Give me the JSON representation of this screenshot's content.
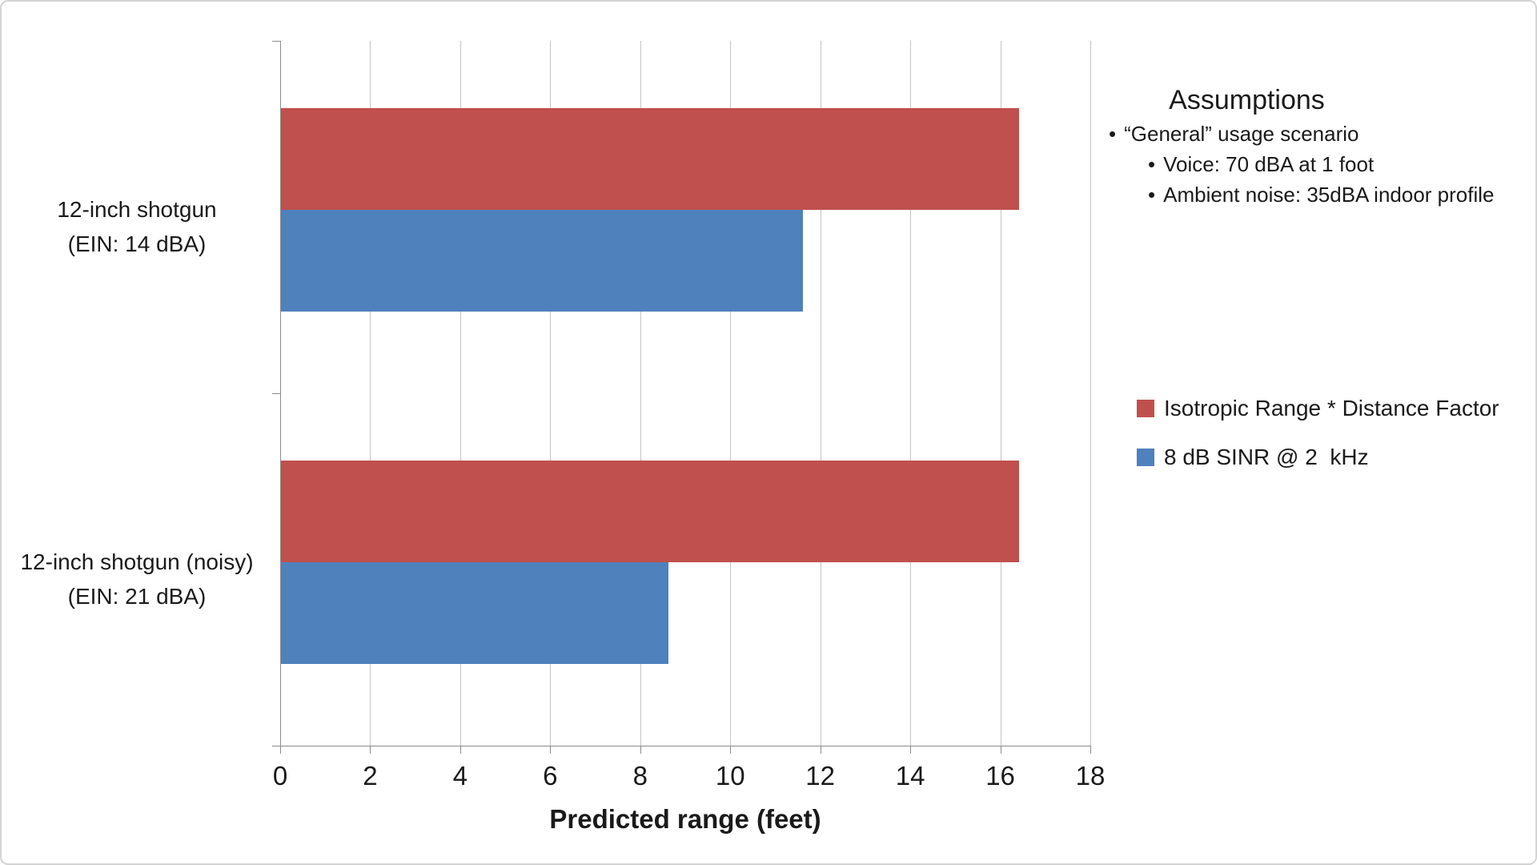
{
  "chart_data": {
    "type": "bar",
    "orientation": "horizontal",
    "xlabel": "Predicted range (feet)",
    "xlim": [
      0,
      18
    ],
    "xticks": [
      0,
      2,
      4,
      6,
      8,
      10,
      12,
      14,
      16,
      18
    ],
    "grid": true,
    "legend_position": "right",
    "categories": [
      {
        "line1": "12-inch shotgun",
        "line2": "(EIN: 14 dBA)"
      },
      {
        "line1": "12-inch shotgun (noisy)",
        "line2": "(EIN: 21 dBA)"
      }
    ],
    "series": [
      {
        "name": "Isotropic Range * Distance Factor",
        "color": "#C0504D",
        "values": [
          16.4,
          16.4
        ]
      },
      {
        "name": "8 dB SINR @ 2  kHz",
        "color": "#4F81BD",
        "values": [
          11.6,
          8.6
        ]
      }
    ]
  },
  "annotations": {
    "title": "Assumptions",
    "bullet_char": "•",
    "bullets": [
      {
        "text": "“General” usage scenario",
        "indent": 0
      },
      {
        "text": "Voice: 70 dBA at 1 foot",
        "indent": 1
      },
      {
        "text": "Ambient noise: 35dBA indoor profile",
        "indent": 1
      }
    ]
  },
  "colors": {
    "grid": "#C4C4C4",
    "axis": "#8C8C8C",
    "frame_border": "#D4D4D4",
    "text": "#1A1A1A"
  }
}
